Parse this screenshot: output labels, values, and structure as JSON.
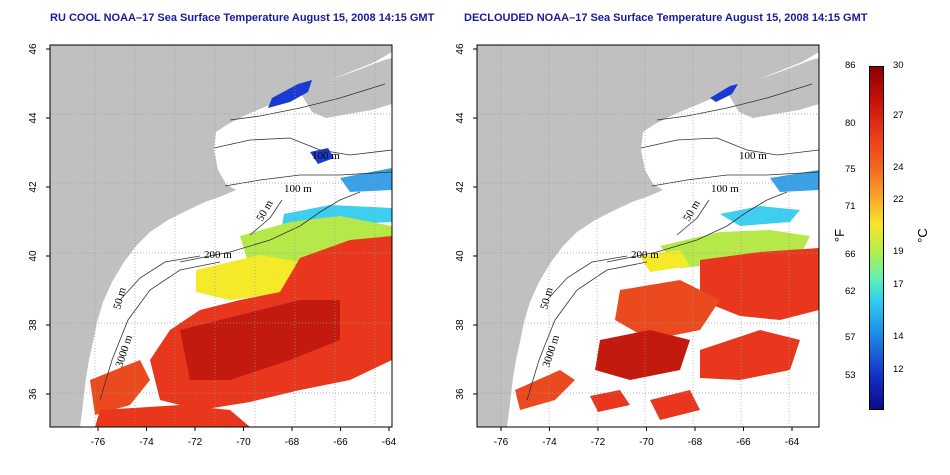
{
  "maps": [
    {
      "title": "RU COOL NOAA–17 Sea Surface Temperature August 15, 2008 14:15 GMT",
      "contours": [
        "100 m",
        "100 m",
        "50 m",
        "200 m",
        "50 m",
        "3000 m"
      ]
    },
    {
      "title": "DECLOUDED NOAA–17 Sea Surface Temperature August 15, 2008 14:15 GMT",
      "contours": [
        "100 m",
        "100 m",
        "50 m",
        "200 m",
        "50 m",
        "3000 m"
      ]
    }
  ],
  "axes": {
    "lon_ticks": [
      "-76",
      "-74",
      "-72",
      "-70",
      "-68",
      "-66",
      "-64"
    ],
    "lat_ticks": [
      "46",
      "44",
      "42",
      "40",
      "38",
      "36"
    ]
  },
  "colorbar": {
    "f_ticks": [
      "86",
      "80",
      "75",
      "71",
      "66",
      "62",
      "57",
      "53"
    ],
    "c_ticks": [
      "30",
      "27",
      "24",
      "22",
      "19",
      "17",
      "14",
      "12"
    ],
    "f_unit": "°F",
    "c_unit": "°C"
  },
  "colors": {
    "land": "#c0c0c0",
    "ocean": "#ffffff",
    "title": "#1a1aa0",
    "warm": "#e8371c",
    "hot": "#c21a0e",
    "mid": "#f4ea2a",
    "cool": "#3ecff0",
    "cold": "#1a3ad0"
  }
}
